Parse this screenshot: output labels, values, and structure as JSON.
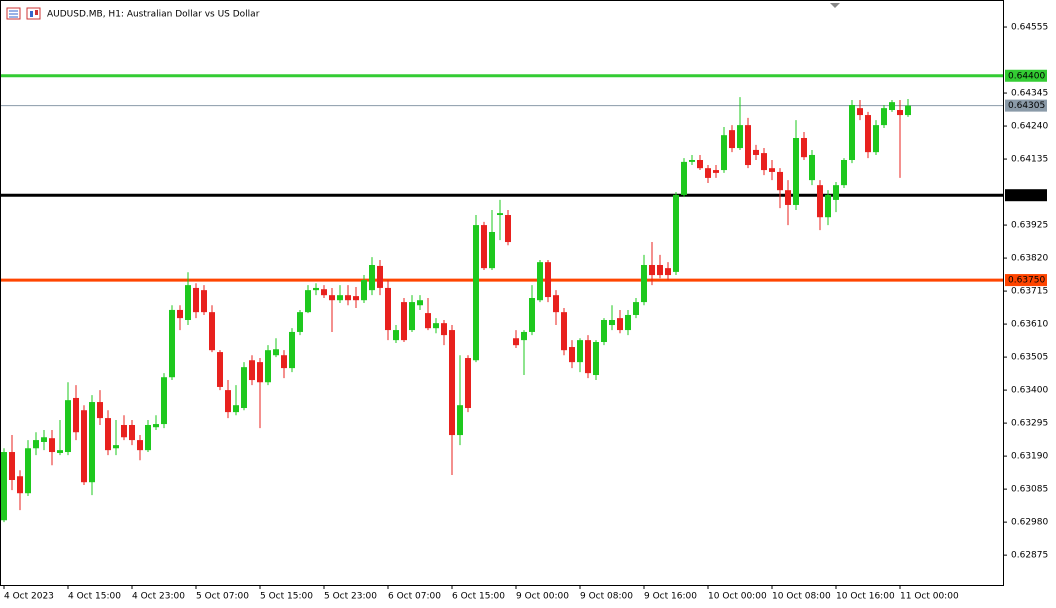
{
  "chart_data": {
    "type": "candlestick",
    "title": "AUDUSD.MB, H1:  Australian Dollar vs US Dollar",
    "categories": [
      "4 Oct 2023",
      null,
      null,
      null,
      null,
      null,
      null,
      null,
      "4 Oct 15:00",
      null,
      null,
      null,
      null,
      null,
      null,
      null,
      "4 Oct 23:00",
      null,
      null,
      null,
      null,
      null,
      null,
      null,
      "5 Oct 07:00",
      null,
      null,
      null,
      null,
      null,
      null,
      null,
      "5 Oct 15:00",
      null,
      null,
      null,
      null,
      null,
      null,
      null,
      "5 Oct 23:00",
      null,
      null,
      null,
      null,
      null,
      null,
      null,
      "6 Oct 07:00",
      null,
      null,
      null,
      null,
      null,
      null,
      null,
      "6 Oct 15:00",
      null,
      null,
      null,
      null,
      null,
      null,
      null,
      "9 Oct 00:00",
      null,
      null,
      null,
      null,
      null,
      null,
      null,
      "9 Oct 08:00",
      null,
      null,
      null,
      null,
      null,
      null,
      null,
      "9 Oct 16:00",
      null,
      null,
      null,
      null,
      null,
      null,
      null,
      "10 Oct 00:00",
      null,
      null,
      null,
      null,
      null,
      null,
      null,
      "10 Oct 08:00",
      null,
      null,
      null,
      null,
      null,
      null,
      null,
      "10 Oct 16:00",
      null,
      null,
      null,
      null,
      null,
      null,
      null,
      "11 Oct 00:00",
      null
    ],
    "open": [
      0.62986,
      0.63203,
      0.63126,
      0.63072,
      0.63215,
      0.63235,
      0.63247,
      0.632,
      0.63203,
      0.63375,
      0.63336,
      0.63107,
      0.63362,
      0.63311,
      0.63215,
      0.63289,
      0.63289,
      0.63241,
      0.63209,
      0.63282,
      0.63292,
      0.63441,
      0.63655,
      0.63623,
      0.63725,
      0.63718,
      0.63648,
      0.63521,
      0.634,
      0.6333,
      0.63343,
      0.63495,
      0.63489,
      0.63425,
      0.63511,
      0.63511,
      0.6347,
      0.63585,
      0.63648,
      0.63718,
      0.63721,
      0.63702,
      0.63686,
      0.63702,
      0.63699,
      0.63686,
      0.63718,
      0.63795,
      0.63725,
      0.63559,
      0.6368,
      0.63591,
      0.6367,
      0.63645,
      0.63597,
      0.63613,
      0.63591,
      0.63257,
      0.63502,
      0.63495,
      0.63925,
      0.63788,
      0.63957,
      0.63957,
      0.63565,
      0.63559,
      0.63585,
      0.63686,
      0.63807,
      0.63702,
      0.63648,
      0.63537,
      0.63489,
      0.63559,
      0.63448,
      0.63553,
      0.63607,
      0.63629,
      0.63591,
      0.63639,
      0.6368,
      0.63798,
      0.63798,
      0.63788,
      0.63776,
      0.64021,
      0.64126,
      0.64132,
      0.64106,
      0.641,
      0.641,
      0.64227,
      0.6417,
      0.64243,
      0.64164,
      0.64154,
      0.64106,
      0.64094,
      0.64036,
      0.63989,
      0.64202,
      0.64068,
      0.64052,
      0.6395,
      0.64005,
      0.64052,
      0.64132,
      0.64297,
      0.64275,
      0.64157,
      0.64243,
      0.64291,
      0.64291,
      0.64275
    ],
    "high": [
      0.63215,
      0.63257,
      0.63145,
      0.63241,
      0.63266,
      0.63273,
      0.63273,
      0.63305,
      0.63425,
      0.63416,
      0.63352,
      0.63384,
      0.634,
      0.63336,
      0.63305,
      0.6332,
      0.63305,
      0.63257,
      0.63305,
      0.6332,
      0.63454,
      0.6367,
      0.6367,
      0.63775,
      0.6374,
      0.63734,
      0.6367,
      0.63527,
      0.63432,
      0.63416,
      0.63489,
      0.63511,
      0.63502,
      0.63543,
      0.63565,
      0.63527,
      0.63597,
      0.63655,
      0.63734,
      0.6374,
      0.63734,
      0.63725,
      0.63734,
      0.63734,
      0.63728,
      0.63766,
      0.63823,
      0.63814,
      0.6375,
      0.63607,
      0.63693,
      0.63702,
      0.63702,
      0.63693,
      0.63629,
      0.63623,
      0.63607,
      0.63511,
      0.63511,
      0.63957,
      0.63935,
      0.63973,
      0.64005,
      0.63973,
      0.63591,
      0.63591,
      0.63734,
      0.63814,
      0.63814,
      0.63718,
      0.63661,
      0.63559,
      0.63565,
      0.63575,
      0.63559,
      0.63629,
      0.6367,
      0.63655,
      0.63655,
      0.63693,
      0.6383,
      0.63871,
      0.6383,
      0.63807,
      0.6403,
      0.64138,
      0.64148,
      0.64148,
      0.64116,
      0.64116,
      0.64237,
      0.64243,
      0.64332,
      0.64266,
      0.6418,
      0.6417,
      0.64132,
      0.64106,
      0.64068,
      0.64259,
      0.64221,
      0.64164,
      0.64068,
      0.64036,
      0.64062,
      0.64138,
      0.64323,
      0.64323,
      0.64285,
      0.64259,
      0.64307,
      0.64323,
      0.64323,
      0.64326
    ],
    "low": [
      0.6298,
      0.63082,
      0.63018,
      0.63063,
      0.63193,
      0.63209,
      0.63161,
      0.63193,
      0.63193,
      0.63241,
      0.63098,
      0.63066,
      0.63289,
      0.63193,
      0.63193,
      0.63241,
      0.63225,
      0.63177,
      0.63203,
      0.63273,
      0.63279,
      0.63432,
      0.63591,
      0.63607,
      0.63629,
      0.63639,
      0.63521,
      0.634,
      0.63311,
      0.6332,
      0.63336,
      0.63416,
      0.63279,
      0.63416,
      0.63505,
      0.63438,
      0.63457,
      0.63575,
      0.63645,
      0.63702,
      0.63693,
      0.63585,
      0.63677,
      0.6367,
      0.63661,
      0.63677,
      0.63702,
      0.63702,
      0.63559,
      0.6355,
      0.63553,
      0.63585,
      0.63655,
      0.63591,
      0.63581,
      0.63543,
      0.6313,
      0.63225,
      0.6333,
      0.63489,
      0.63782,
      0.63782,
      0.63877,
      0.63861,
      0.63534,
      0.63448,
      0.63575,
      0.6368,
      0.6368,
      0.63607,
      0.63511,
      0.6347,
      0.63457,
      0.63438,
      0.63432,
      0.63543,
      0.63591,
      0.63581,
      0.63575,
      0.63629,
      0.6367,
      0.63734,
      0.63756,
      0.6375,
      0.63766,
      0.64014,
      0.64116,
      0.641,
      0.64059,
      0.64075,
      0.64091,
      0.64157,
      0.64164,
      0.64106,
      0.64132,
      0.64084,
      0.64068,
      0.63979,
      0.63925,
      0.63973,
      0.64132,
      0.64052,
      0.63909,
      0.63925,
      0.63966,
      0.64043,
      0.64122,
      0.64259,
      0.64138,
      0.64148,
      0.64234,
      0.64285,
      0.64075,
      0.64269
    ],
    "close": [
      0.63203,
      0.63114,
      0.63072,
      0.63215,
      0.63241,
      0.6325,
      0.63203,
      0.63209,
      0.63368,
      0.63266,
      0.63107,
      0.63362,
      0.63311,
      0.63209,
      0.63225,
      0.6325,
      0.63241,
      0.63209,
      0.63289,
      0.63292,
      0.63441,
      0.63655,
      0.63629,
      0.63734,
      0.63648,
      0.63648,
      0.63527,
      0.6341,
      0.6333,
      0.63352,
      0.63473,
      0.63432,
      0.63425,
      0.63527,
      0.6353,
      0.6347,
      0.63585,
      0.63648,
      0.63718,
      0.63725,
      0.63702,
      0.63686,
      0.63702,
      0.63686,
      0.63686,
      0.6375,
      0.63798,
      0.63725,
      0.63591,
      0.63591,
      0.63559,
      0.6368,
      0.63686,
      0.63597,
      0.63613,
      0.63575,
      0.63257,
      0.63352,
      0.63343,
      0.63925,
      0.63788,
      0.63903,
      0.63963,
      0.63871,
      0.63543,
      0.63585,
      0.63693,
      0.63807,
      0.63696,
      0.63648,
      0.63527,
      0.63489,
      0.63559,
      0.63454,
      0.63553,
      0.63623,
      0.63623,
      0.63591,
      0.63639,
      0.6368,
      0.63798,
      0.63766,
      0.63766,
      0.63766,
      0.64021,
      0.64126,
      0.64132,
      0.64106,
      0.64075,
      0.64091,
      0.64211,
      0.6417,
      0.64243,
      0.64116,
      0.64148,
      0.641,
      0.64094,
      0.64036,
      0.63989,
      0.64202,
      0.64141,
      0.64148,
      0.6395,
      0.64021,
      0.64052,
      0.64132,
      0.64307,
      0.64275,
      0.64157,
      0.64243,
      0.64297,
      0.64316,
      0.64275,
      0.64305
    ],
    "up_color": "#1ec81e",
    "down_color": "#e8211e",
    "ylim": [
      0.6278,
      0.64641
    ],
    "yticks": [
      0.64555,
      0.64345,
      {
        "value": 0.6424,
        "label": "0.64240"
      },
      0.64135,
      0.63925,
      {
        "value": 0.6382,
        "label": "0.63820"
      },
      0.63715,
      {
        "value": 0.6361,
        "label": "0.63610"
      },
      0.63505,
      {
        "value": 0.634,
        "label": "0.63400"
      },
      0.63295,
      {
        "value": 0.6319,
        "label": "0.63190"
      },
      0.63085,
      {
        "value": 0.6298,
        "label": "0.62980"
      },
      0.62875
    ],
    "levels": [
      {
        "value": 0.644,
        "label": "0.64400",
        "color": "#33cc33"
      },
      {
        "value": 0.64305,
        "label": "0.64305",
        "color": "#8a9aa8"
      },
      {
        "value": 0.6402,
        "label": "0.64020",
        "color": "#000000"
      },
      {
        "value": 0.6375,
        "label": "0.63750",
        "color": "#ff4500"
      }
    ]
  }
}
